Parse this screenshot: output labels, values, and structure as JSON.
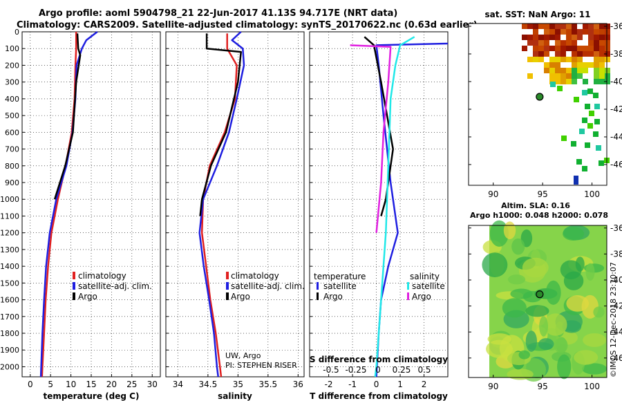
{
  "title_line1": "Argo profile: aoml 5904798_21 22-Jun-2017 41.13S 94.717E (NRT data)",
  "title_line2": "Climatology: CARS2009. Satellite-adjusted climatology: synTS_20170622.nc (0.63d earlier)",
  "credit_line1": "UW, Argo",
  "credit_line2": "PI: STEPHEN RISER",
  "watermark": "©IMOS 12-Dec-2018 23:10:07",
  "colors": {
    "climatology": "#e02020",
    "satellite": "#1e1ee0",
    "argo": "#000000",
    "satellite_sal": "#20e8e8",
    "climatology_sal": "#e020e0"
  },
  "chart_data": [
    {
      "type": "line",
      "xlabel": "temperature (deg C)",
      "xlim": [
        -2,
        32
      ],
      "xticks": [
        "0",
        "5",
        "10",
        "15",
        "20",
        "25",
        "30"
      ],
      "ylim": [
        0,
        2060
      ],
      "yticks": [
        "0",
        "100",
        "200",
        "300",
        "400",
        "500",
        "600",
        "700",
        "800",
        "900",
        "1000",
        "1100",
        "1200",
        "1300",
        "1400",
        "1500",
        "1600",
        "1700",
        "1800",
        "1900",
        "2000"
      ],
      "legend": [
        "climatology",
        "satellite-adj. clim.",
        "Argo"
      ],
      "series": [
        {
          "name": "climatology",
          "points": [
            [
              11.3,
              0
            ],
            [
              11.3,
              100
            ],
            [
              11.1,
              200
            ],
            [
              10.9,
              400
            ],
            [
              10.2,
              600
            ],
            [
              8.7,
              800
            ],
            [
              6.8,
              1000
            ],
            [
              5.2,
              1200
            ],
            [
              4.4,
              1400
            ],
            [
              3.8,
              1600
            ],
            [
              3.4,
              1800
            ],
            [
              3.0,
              2000
            ],
            [
              2.9,
              2060
            ]
          ]
        },
        {
          "name": "satellite-adj. clim.",
          "points": [
            [
              16.5,
              0
            ],
            [
              13.8,
              50
            ],
            [
              12.7,
              100
            ],
            [
              11.4,
              200
            ],
            [
              11.1,
              400
            ],
            [
              10.4,
              600
            ],
            [
              8.9,
              800
            ],
            [
              6.4,
              1000
            ],
            [
              4.8,
              1200
            ],
            [
              3.9,
              1400
            ],
            [
              3.4,
              1600
            ],
            [
              3.0,
              1800
            ],
            [
              2.7,
              2000
            ],
            [
              2.6,
              2060
            ]
          ]
        },
        {
          "name": "Argo",
          "points": [
            [
              11.6,
              10
            ],
            [
              11.8,
              100
            ],
            [
              12.3,
              140
            ],
            [
              11.3,
              300
            ],
            [
              10.5,
              600
            ],
            [
              8.6,
              800
            ],
            [
              6.0,
              1000
            ]
          ]
        }
      ]
    },
    {
      "type": "line",
      "xlabel": "salinity",
      "xlim": [
        33.8,
        36.1
      ],
      "xticks": [
        "34",
        "34.5",
        "35",
        "35.5",
        "36"
      ],
      "ylim": [
        0,
        2060
      ],
      "legend": [
        "climatology",
        "satellite-adj. clim.",
        "Argo"
      ],
      "series": [
        {
          "name": "climatology",
          "points": [
            [
              34.82,
              10
            ],
            [
              34.82,
              100
            ],
            [
              34.98,
              200
            ],
            [
              34.95,
              400
            ],
            [
              34.78,
              600
            ],
            [
              34.53,
              800
            ],
            [
              34.42,
              1000
            ],
            [
              34.4,
              1200
            ],
            [
              34.47,
              1400
            ],
            [
              34.54,
              1600
            ],
            [
              34.63,
              1800
            ],
            [
              34.7,
              2000
            ],
            [
              34.72,
              2060
            ]
          ]
        },
        {
          "name": "satellite-adj. clim.",
          "points": [
            [
              35.05,
              0
            ],
            [
              34.9,
              50
            ],
            [
              35.08,
              100
            ],
            [
              35.1,
              200
            ],
            [
              34.98,
              400
            ],
            [
              34.85,
              600
            ],
            [
              34.65,
              800
            ],
            [
              34.42,
              1000
            ],
            [
              34.36,
              1200
            ],
            [
              34.43,
              1400
            ],
            [
              34.52,
              1600
            ],
            [
              34.6,
              1800
            ],
            [
              34.65,
              2000
            ],
            [
              34.67,
              2060
            ]
          ]
        },
        {
          "name": "Argo",
          "points": [
            [
              34.48,
              10
            ],
            [
              34.48,
              100
            ],
            [
              35.05,
              120
            ],
            [
              35.0,
              300
            ],
            [
              34.8,
              600
            ],
            [
              34.55,
              800
            ],
            [
              34.4,
              1000
            ],
            [
              34.37,
              1100
            ]
          ]
        }
      ]
    },
    {
      "type": "line",
      "xlabel": "T difference from climatology",
      "xlabel2": "S difference from climatology",
      "xlim": [
        -2.8,
        3.0
      ],
      "xticks": [
        "-2",
        "-1",
        "0",
        "1",
        "2"
      ],
      "xticks2": [
        "-0.5",
        "-0.25",
        "0",
        "0.25",
        "0.5"
      ],
      "ylim": [
        0,
        2060
      ],
      "legend_temperature": {
        "title": "temperature",
        "items": [
          "satellite",
          "Argo"
        ]
      },
      "legend_salinity": {
        "title": "salinity",
        "items": [
          "satellite",
          "Argo"
        ]
      },
      "series": [
        {
          "name": "temperature satellite",
          "points": [
            [
              3.0,
              70
            ],
            [
              0.0,
              80
            ],
            [
              0.1,
              200
            ],
            [
              0.3,
              500
            ],
            [
              0.6,
              900
            ],
            [
              0.9,
              1200
            ],
            [
              0.5,
              1400
            ],
            [
              0.2,
              1600
            ],
            [
              0.1,
              1800
            ],
            [
              0.0,
              2060
            ]
          ]
        },
        {
          "name": "temperature Argo",
          "points": [
            [
              -0.5,
              30
            ],
            [
              -0.1,
              80
            ],
            [
              0.2,
              300
            ],
            [
              0.7,
              700
            ],
            [
              0.4,
              1000
            ],
            [
              0.2,
              1100
            ]
          ]
        },
        {
          "name": "salinity satellite",
          "points": [
            [
              1.6,
              30
            ],
            [
              1.0,
              80
            ],
            [
              0.8,
              200
            ],
            [
              0.6,
              400
            ],
            [
              0.5,
              800
            ],
            [
              0.4,
              1200
            ],
            [
              0.2,
              1600
            ],
            [
              0.0,
              2000
            ],
            [
              -0.05,
              2060
            ]
          ]
        },
        {
          "name": "salinity Argo",
          "points": [
            [
              -1.1,
              80
            ],
            [
              0.6,
              90
            ],
            [
              0.5,
              300
            ],
            [
              0.3,
              600
            ],
            [
              0.2,
              900
            ],
            [
              0.0,
              1200
            ]
          ]
        }
      ]
    },
    {
      "type": "heatmap",
      "title": "sat. SST: NaN Argo: 11",
      "xticks": [
        "90",
        "95",
        "100"
      ],
      "yticks": [
        "-36",
        "-38",
        "-40",
        "-42",
        "-44",
        "-46"
      ],
      "marker": {
        "lon": 94.7,
        "lat": -41.1
      }
    },
    {
      "type": "heatmap",
      "title": "Altim. SLA: 0.16",
      "subtitle": "Argo h1000: 0.048 h2000: 0.078",
      "xticks": [
        "90",
        "95",
        "100"
      ],
      "yticks": [
        "-36",
        "-38",
        "-40",
        "-42",
        "-44",
        "-46"
      ],
      "marker": {
        "lon": 94.7,
        "lat": -41.1
      }
    }
  ]
}
